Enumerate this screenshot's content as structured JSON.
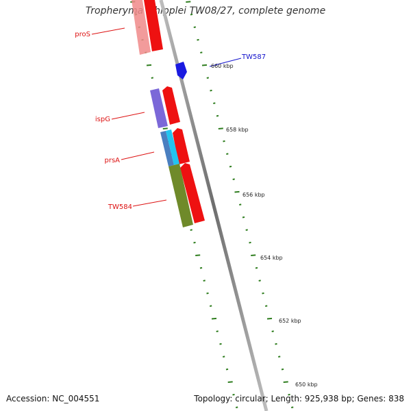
{
  "header": {
    "title": "Tropheryma whipplei TW08/27, complete genome"
  },
  "footer": {
    "accession": "Accession: NC_004551",
    "summary": "Topology: circular; Length: 925,938 bp; Genes: 838"
  },
  "map": {
    "backbone_color": "#8c8c8c",
    "tick_color": "#2e7d1e",
    "scale_labels": [
      "660 kbp",
      "658 kbp",
      "656 kbp",
      "654 kbp",
      "652 kbp",
      "650 kbp"
    ],
    "gene_labels": [
      {
        "name": "proS",
        "color": "#dd1111"
      },
      {
        "name": "ispG",
        "color": "#dd1111"
      },
      {
        "name": "prsA",
        "color": "#dd1111"
      },
      {
        "name": "TW584",
        "color": "#dd1111"
      },
      {
        "name": "TW587",
        "color": "#1111cc"
      }
    ],
    "feature_colors": {
      "red_cds": "#ee1111",
      "pink_cog": "#f08a8a",
      "purple_cog": "#7b68d8",
      "blue_cds": "#1a1ae0",
      "steel_cog": "#4a7fc0",
      "cyan_cog": "#22c4f0",
      "olive_cog": "#6f8a2a"
    }
  }
}
